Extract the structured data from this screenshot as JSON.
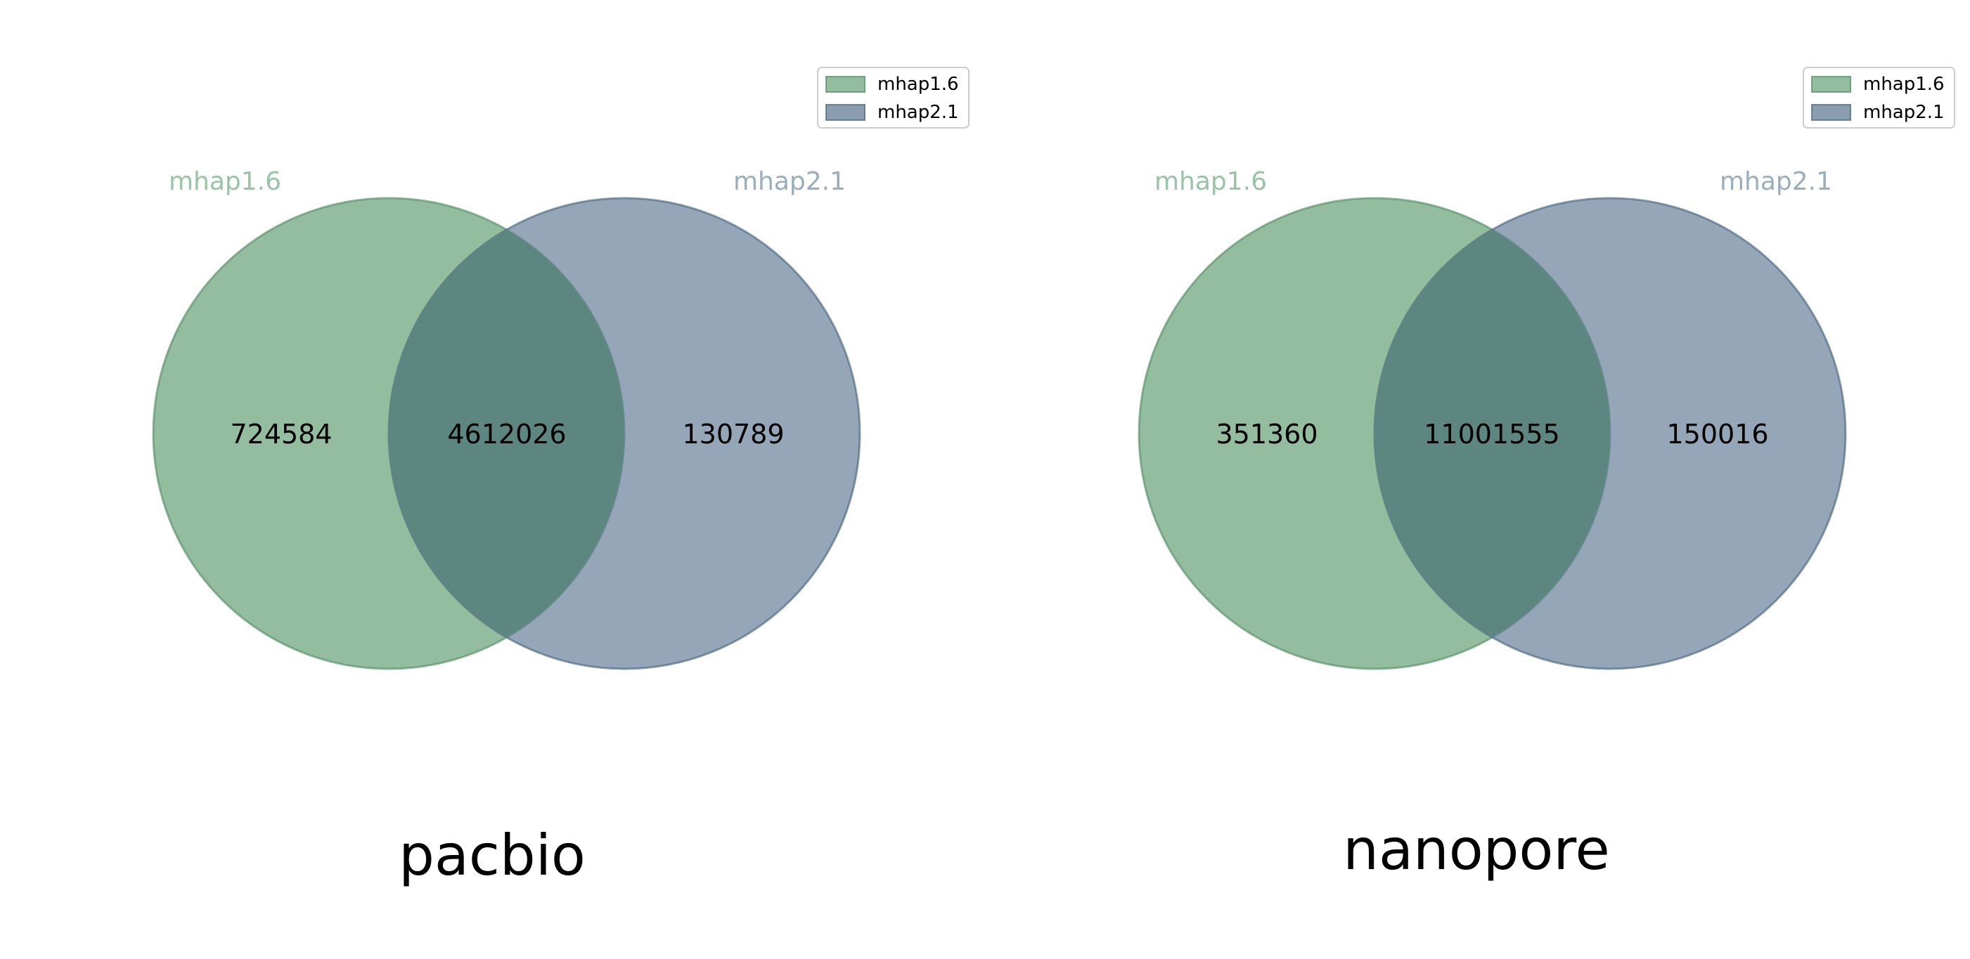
{
  "chart_data": [
    {
      "type": "venn",
      "title": "pacbio",
      "sets": [
        {
          "name": "mhap1.6",
          "color": "#6aa479"
        },
        {
          "name": "mhap2.1",
          "color": "#5d7891"
        }
      ],
      "regions": {
        "only_a": 724584,
        "both": 4612026,
        "only_b": 130789
      },
      "region_labels": {
        "only_a": "724584",
        "both": "4612026",
        "only_b": "130789"
      },
      "legend": {
        "placement": "top-right",
        "entries": [
          "mhap1.6",
          "mhap2.1"
        ]
      }
    },
    {
      "type": "venn",
      "title": "nanopore",
      "sets": [
        {
          "name": "mhap1.6",
          "color": "#6aa479"
        },
        {
          "name": "mhap2.1",
          "color": "#5d7891"
        }
      ],
      "regions": {
        "only_a": 351360,
        "both": 11001555,
        "only_b": 150016
      },
      "region_labels": {
        "only_a": "351360",
        "both": "11001555",
        "only_b": "150016"
      },
      "legend": {
        "placement": "top-right",
        "entries": [
          "mhap1.6",
          "mhap2.1"
        ]
      }
    }
  ],
  "colors": {
    "set_a_fill": "#6aa479",
    "set_a_stroke": "#4f8a60",
    "set_b_fill": "#5d7891",
    "set_b_stroke": "#45617a",
    "intersection": "#5e8680",
    "set_a_label": "#99c3a5",
    "set_b_label": "#99aebd",
    "value_text": "#000000",
    "legend_border": "#cccccc"
  }
}
